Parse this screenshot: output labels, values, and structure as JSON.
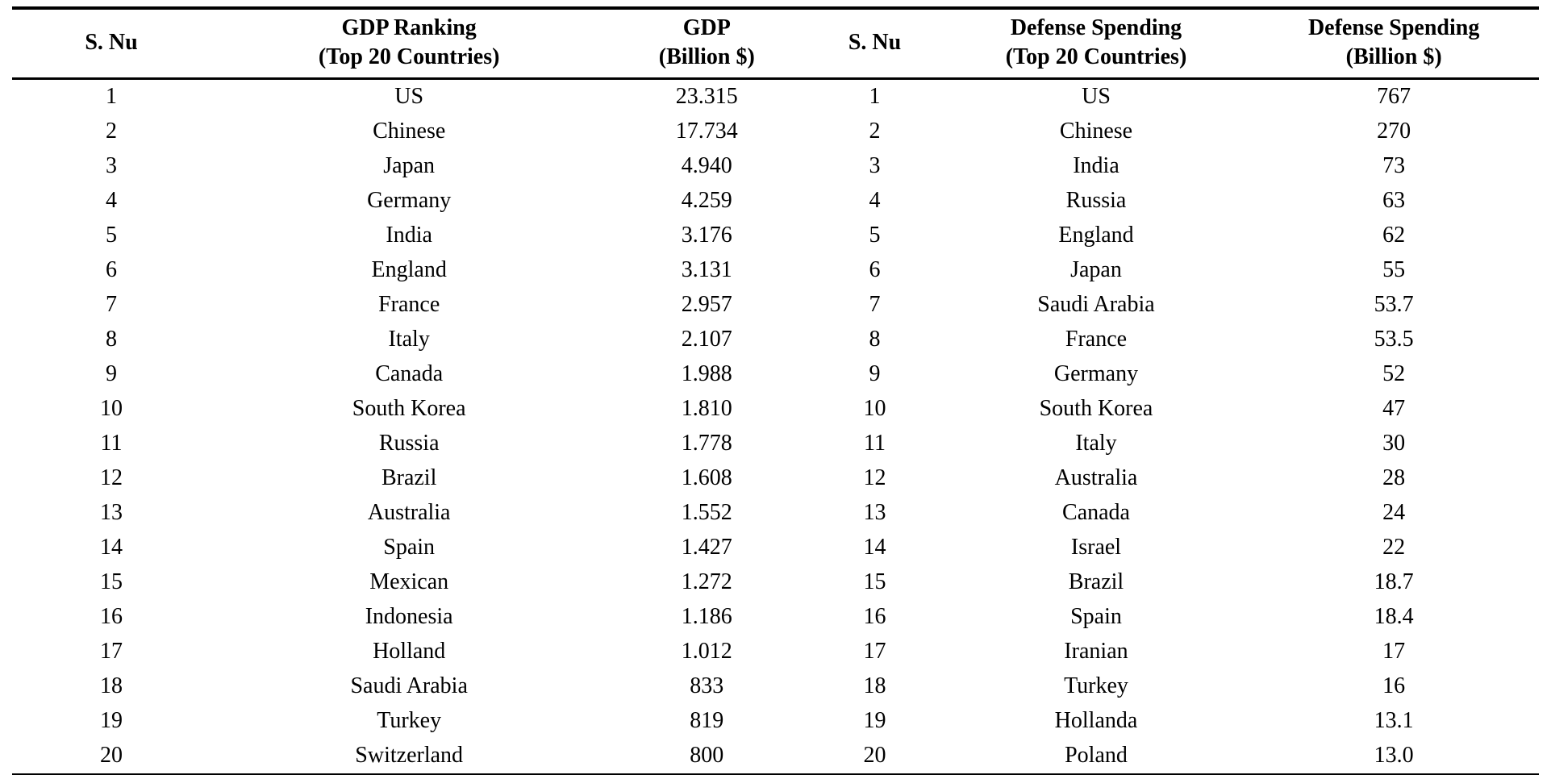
{
  "table": {
    "headers": [
      "S. Nu",
      "GDP Ranking\n(Top 20 Countries)",
      "GDP\n(Billion $)",
      "S. Nu",
      "Defense Spending\n(Top 20 Countries)",
      "Defense Spending\n(Billion $)"
    ],
    "rows": [
      [
        "1",
        "US",
        "23.315",
        "1",
        "US",
        "767"
      ],
      [
        "2",
        "Chinese",
        "17.734",
        "2",
        "Chinese",
        "270"
      ],
      [
        "3",
        "Japan",
        "4.940",
        "3",
        "India",
        "73"
      ],
      [
        "4",
        "Germany",
        "4.259",
        "4",
        "Russia",
        "63"
      ],
      [
        "5",
        "India",
        "3.176",
        "5",
        "England",
        "62"
      ],
      [
        "6",
        "England",
        "3.131",
        "6",
        "Japan",
        "55"
      ],
      [
        "7",
        "France",
        "2.957",
        "7",
        "Saudi Arabia",
        "53.7"
      ],
      [
        "8",
        "Italy",
        "2.107",
        "8",
        "France",
        "53.5"
      ],
      [
        "9",
        "Canada",
        "1.988",
        "9",
        "Germany",
        "52"
      ],
      [
        "10",
        "South Korea",
        "1.810",
        "10",
        "South Korea",
        "47"
      ],
      [
        "11",
        "Russia",
        "1.778",
        "11",
        "Italy",
        "30"
      ],
      [
        "12",
        "Brazil",
        "1.608",
        "12",
        "Australia",
        "28"
      ],
      [
        "13",
        "Australia",
        "1.552",
        "13",
        "Canada",
        "24"
      ],
      [
        "14",
        "Spain",
        "1.427",
        "14",
        "Israel",
        "22"
      ],
      [
        "15",
        "Mexican",
        "1.272",
        "15",
        "Brazil",
        "18.7"
      ],
      [
        "16",
        "Indonesia",
        "1.186",
        "16",
        "Spain",
        "18.4"
      ],
      [
        "17",
        "Holland",
        "1.012",
        "17",
        "Iranian",
        "17"
      ],
      [
        "18",
        "Saudi Arabia",
        "833",
        "18",
        "Turkey",
        "16"
      ],
      [
        "19",
        "Turkey",
        "819",
        "19",
        "Hollanda",
        "13.1"
      ],
      [
        "20",
        "Switzerland",
        "800",
        "20",
        "Poland",
        "13.0"
      ]
    ],
    "text_color": "#000000",
    "background_color": "#ffffff"
  }
}
